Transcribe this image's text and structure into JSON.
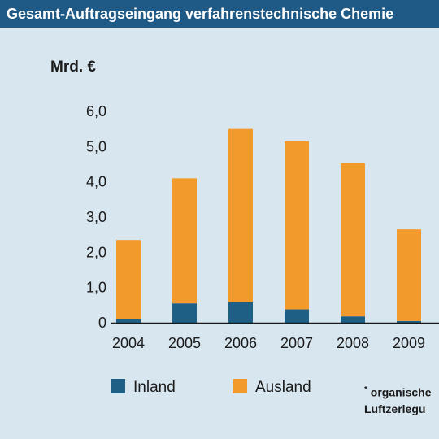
{
  "title": "Gesamt-Auftragseingang verfahrenstechnische Chemie",
  "colors": {
    "header": "#1f5a86",
    "background": "#d8e6ef",
    "inland": "#1e5f86",
    "ausland": "#f39a2d"
  },
  "footnote": {
    "marker": "*",
    "line1": "organische",
    "line2": "Luftzerlegu"
  },
  "chart_data": {
    "type": "bar",
    "stacked": true,
    "ylabel": "Mrd. €",
    "categories": [
      "2004",
      "2005",
      "2006",
      "2007",
      "2008",
      "2009"
    ],
    "series": [
      {
        "name": "Inland",
        "values": [
          0.1,
          0.55,
          0.58,
          0.38,
          0.18,
          0.05
        ]
      },
      {
        "name": "Ausland",
        "values": [
          2.25,
          3.55,
          4.92,
          4.77,
          4.35,
          2.6
        ]
      }
    ],
    "yticks": [
      "0",
      "1,0",
      "2,0",
      "3,0",
      "4,0",
      "5,0",
      "6,0"
    ],
    "ylim": [
      0,
      6
    ],
    "grid": false,
    "legend": "bottom"
  }
}
